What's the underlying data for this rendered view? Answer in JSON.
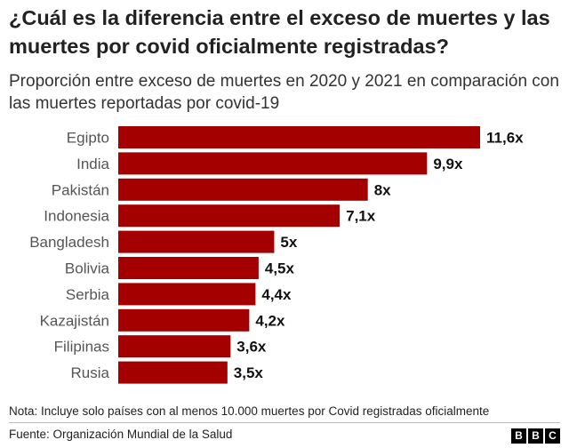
{
  "header": {
    "title": "¿Cuál es la diferencia entre el exceso de muertes y las muertes por covid oficialmente registradas?",
    "subtitle": "Proporción entre exceso de muertes en 2020 y 2021 en comparación con las muertes reportadas por covid-19"
  },
  "chart_data": {
    "type": "bar",
    "orientation": "horizontal",
    "title": "¿Cuál es la diferencia entre el exceso de muertes y las muertes por covid oficialmente registradas?",
    "subtitle": "Proporción entre exceso de muertes en 2020 y 2021 en comparación con las muertes reportadas por covid-19",
    "categories": [
      "Egipto",
      "India",
      "Pakistán",
      "Indonesia",
      "Bangladesh",
      "Bolivia",
      "Serbia",
      "Kazajistán",
      "Filipinas",
      "Rusia"
    ],
    "values": [
      11.6,
      9.9,
      8,
      7.1,
      5,
      4.5,
      4.4,
      4.2,
      3.6,
      3.5
    ],
    "data_labels": [
      "11,6x",
      "9,9x",
      "8x",
      "7,1x",
      "5x",
      "4,5x",
      "4,4x",
      "4,2x",
      "3,6x",
      "3,5x"
    ],
    "xlim": [
      0,
      11.6
    ],
    "bar_color": "#a50000",
    "grid": false,
    "legend": "none"
  },
  "footer": {
    "note": "Nota: Incluye solo países con al menos 10.000 muertes por Covid registradas oficialmente",
    "source": "Fuente: Organización Mundial de la Salud",
    "logo": [
      "B",
      "B",
      "C"
    ]
  }
}
